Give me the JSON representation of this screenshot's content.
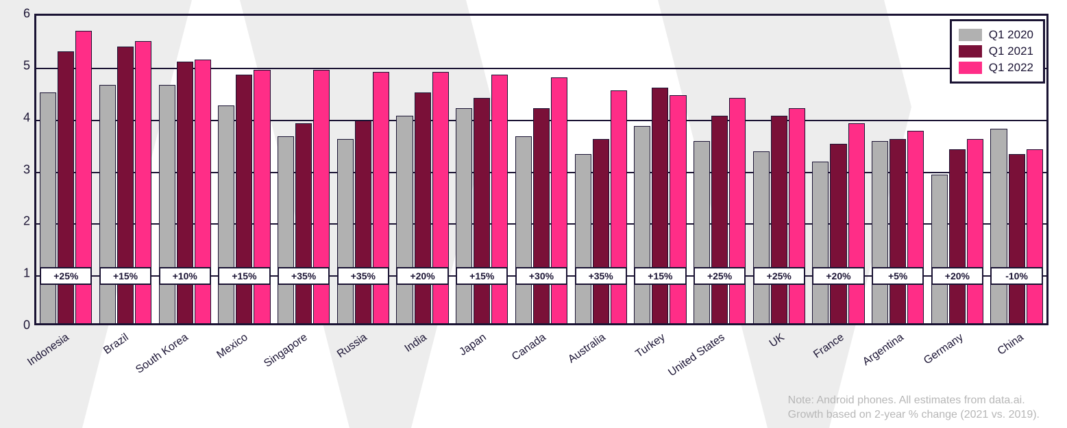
{
  "chart": {
    "type": "bar",
    "ylim": [
      0,
      6
    ],
    "yticks": [
      0,
      1,
      2,
      3,
      4,
      5,
      6
    ],
    "grid_color": "#1a1333",
    "border_color": "#1a1333",
    "background_color": "#ffffff",
    "bg_chevron_color": "#ededed",
    "bar_border_width": 1.5,
    "xlabel_rotation_deg": -35,
    "xlabel_fontsize": 16,
    "ytick_fontsize": 18,
    "series": [
      {
        "name": "Q1 2020",
        "color": "#b1b1b1"
      },
      {
        "name": "Q1 2021",
        "color": "#7a1038"
      },
      {
        "name": "Q1 2022",
        "color": "#ff2d87"
      }
    ],
    "growth_badge": {
      "bg": "#ffffff",
      "border": "#1a1333",
      "fontsize": 14,
      "y_center_value": 1
    },
    "legend": {
      "position": "top-right",
      "bg": "#ffffff",
      "border": "#1a1333",
      "fontsize": 17
    },
    "categories": [
      {
        "label": "Indonesia",
        "values": [
          4.5,
          5.3,
          5.7
        ],
        "growth": "+25%"
      },
      {
        "label": "Brazil",
        "values": [
          4.65,
          5.4,
          5.5
        ],
        "growth": "+15%"
      },
      {
        "label": "South Korea",
        "values": [
          4.65,
          5.1,
          5.15
        ],
        "growth": "+10%"
      },
      {
        "label": "Mexico",
        "values": [
          4.25,
          4.85,
          4.95
        ],
        "growth": "+15%"
      },
      {
        "label": "Singapore",
        "values": [
          3.65,
          3.9,
          4.95
        ],
        "growth": "+35%"
      },
      {
        "label": "Russia",
        "values": [
          3.6,
          3.95,
          4.9
        ],
        "growth": "+35%"
      },
      {
        "label": "India",
        "values": [
          4.05,
          4.5,
          4.9
        ],
        "growth": "+20%"
      },
      {
        "label": "Japan",
        "values": [
          4.2,
          4.4,
          4.85
        ],
        "growth": "+15%"
      },
      {
        "label": "Canada",
        "values": [
          3.65,
          4.2,
          4.8
        ],
        "growth": "+30%"
      },
      {
        "label": "Australia",
        "values": [
          3.3,
          3.6,
          4.55
        ],
        "growth": "+35%"
      },
      {
        "label": "Turkey",
        "values": [
          3.85,
          4.6,
          4.45
        ],
        "growth": "+15%"
      },
      {
        "label": "United States",
        "values": [
          3.55,
          4.05,
          4.4
        ],
        "growth": "+25%"
      },
      {
        "label": "UK",
        "values": [
          3.35,
          4.05,
          4.2
        ],
        "growth": "+25%"
      },
      {
        "label": "France",
        "values": [
          3.15,
          3.5,
          3.9
        ],
        "growth": "+20%"
      },
      {
        "label": "Argentina",
        "values": [
          3.55,
          3.6,
          3.75
        ],
        "growth": "+5%"
      },
      {
        "label": "Germany",
        "values": [
          2.9,
          3.4,
          3.6
        ],
        "growth": "+20%"
      },
      {
        "label": "China",
        "values": [
          3.8,
          3.3,
          3.4
        ],
        "growth": "-10%"
      }
    ],
    "footnote_line1": "Note: Android phones. All estimates from data.ai.",
    "footnote_line2": "Growth based on 2-year % change (2021 vs. 2019).",
    "footnote_color": "#b7b7b7",
    "footnote_fontsize": 16
  }
}
